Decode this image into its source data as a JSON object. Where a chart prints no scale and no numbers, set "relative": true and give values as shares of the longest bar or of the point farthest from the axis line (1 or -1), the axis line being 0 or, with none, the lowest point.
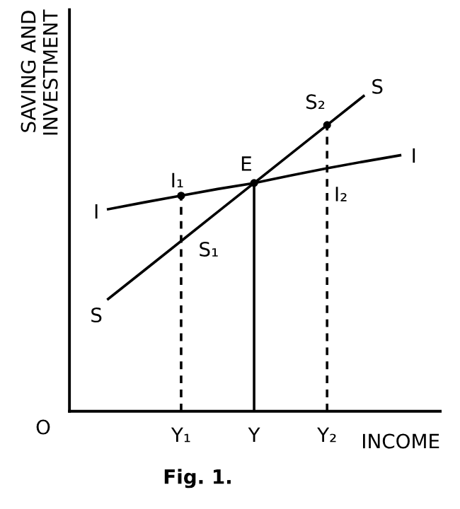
{
  "chart_data": {
    "type": "line",
    "relative": true,
    "xlabel": "INCOME",
    "ylabel": "SAVING AND\nINVESTMENT",
    "categories": [
      null,
      null,
      "Y₁",
      null,
      "Y",
      null,
      "Y₂",
      null,
      null
    ],
    "tick_labels": "x",
    "grid": false,
    "marker": "none",
    "series": [
      {
        "color": "#000000",
        "line_style": "solid",
        "values": [
          0.356,
          0.448,
          0.54,
          0.632,
          0.724,
          0.816,
          0.908,
          1.0,
          null
        ]
      },
      {
        "color": "#000000",
        "line_style": "solid",
        "values": [
          0.641,
          0.663,
          0.684,
          0.705,
          0.724,
          0.748,
          0.771,
          0.792,
          0.812
        ]
      },
      {
        "type": "lollipop",
        "color": "#000000",
        "line_style": "dashed",
        "marker": "circle",
        "values": [
          null,
          null,
          0.684,
          null,
          null,
          null,
          0.908,
          null,
          null
        ]
      },
      {
        "type": "lollipop",
        "color": "#000000",
        "line_style": "solid",
        "marker": "circle",
        "values": [
          null,
          null,
          null,
          null,
          0.724,
          null,
          null,
          null,
          null
        ]
      }
    ],
    "annotations": [
      {
        "text": "E",
        "x": "Y",
        "y": 0.724
      },
      {
        "text": "I₁",
        "x": "Y₁",
        "y": 0.684
      },
      {
        "text": "S₁",
        "x": "Y₁",
        "y": 0.54
      },
      {
        "text": "S₂",
        "x": "Y₂",
        "y": 0.908
      },
      {
        "text": "I₂",
        "x": "Y₂",
        "y": 0.771
      },
      "S",
      "S",
      "I",
      "I",
      "O",
      "Fig. 1."
    ]
  }
}
